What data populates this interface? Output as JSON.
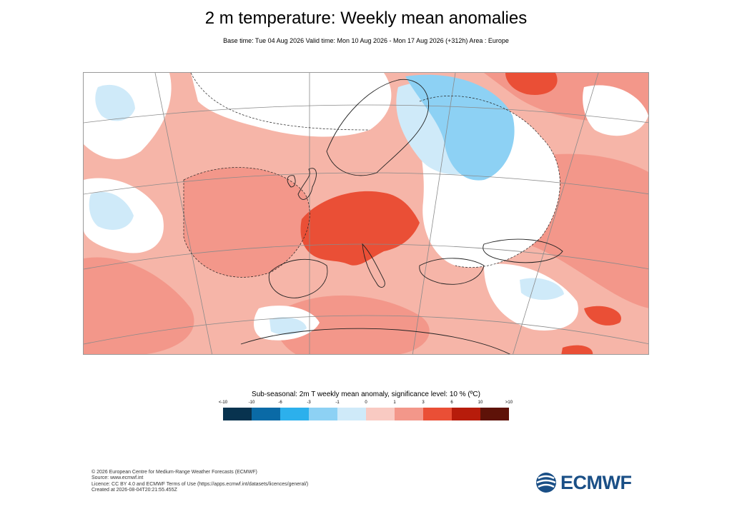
{
  "title": "2 m temperature: Weekly mean anomalies",
  "subtitle": "Base time: Tue 04 Aug 2026 Valid time: Mon 10 Aug 2026 - Mon 17 Aug 2026 (+312h) Area : Europe",
  "legend": {
    "title": "Sub-seasonal: 2m T weekly mean anomaly, significance level: 10 % (ºC)",
    "ticks": [
      "<-10",
      "-10",
      "-6",
      "-3",
      "-1",
      "0",
      "1",
      "3",
      "6",
      "10",
      ">10"
    ],
    "colors": [
      "#08334f",
      "#0a6aa6",
      "#2cb0ec",
      "#8dd1f4",
      "#cfeaf9",
      "#f9cac2",
      "#f3978a",
      "#ea4f36",
      "#b71c0b",
      "#5e1208"
    ]
  },
  "footer": [
    "© 2026 European Centre for Medium-Range Weather Forecasts (ECMWF)",
    "Source: www.ecmwf.int",
    "Licence: CC BY 4.0 and ECMWF Terms of Use (https://apps.ecmwf.int/datasets/licences/general/)",
    "Created at 2026-08-04T20:21:55.455Z"
  ],
  "logo": {
    "text": "ECMWF"
  }
}
